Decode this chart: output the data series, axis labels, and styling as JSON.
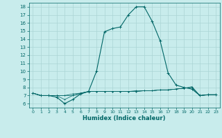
{
  "xlabel": "Humidex (Indice chaleur)",
  "bg_color": "#c8ecec",
  "grid_color": "#aad4d4",
  "line_color": "#006666",
  "xlim": [
    -0.5,
    23.5
  ],
  "ylim": [
    5.5,
    18.5
  ],
  "yticks": [
    6,
    7,
    8,
    9,
    10,
    11,
    12,
    13,
    14,
    15,
    16,
    17,
    18
  ],
  "xticks": [
    0,
    1,
    2,
    3,
    4,
    5,
    6,
    7,
    8,
    9,
    10,
    11,
    12,
    13,
    14,
    15,
    16,
    17,
    18,
    19,
    20,
    21,
    22,
    23
  ],
  "series": [
    [
      7.3,
      7.0,
      7.0,
      6.8,
      6.0,
      6.5,
      7.2,
      7.5,
      10.0,
      14.9,
      15.3,
      15.5,
      17.0,
      18.0,
      18.0,
      16.2,
      13.8,
      9.8,
      8.3,
      8.0,
      7.8,
      7.0,
      7.1,
      7.1
    ],
    [
      7.3,
      7.0,
      7.0,
      7.0,
      7.0,
      7.0,
      7.3,
      7.5,
      7.5,
      7.5,
      7.5,
      7.5,
      7.5,
      7.5,
      7.6,
      7.6,
      7.7,
      7.7,
      7.8,
      7.9,
      8.0,
      7.0,
      7.1,
      7.1
    ],
    [
      7.3,
      7.0,
      7.0,
      7.0,
      6.5,
      7.0,
      7.2,
      7.5,
      7.5,
      7.5,
      7.5,
      7.5,
      7.5,
      7.5,
      7.6,
      7.6,
      7.7,
      7.7,
      7.8,
      7.9,
      8.0,
      7.0,
      7.1,
      7.1
    ],
    [
      7.3,
      7.0,
      7.0,
      7.0,
      7.0,
      7.2,
      7.3,
      7.5,
      7.5,
      7.5,
      7.5,
      7.5,
      7.5,
      7.6,
      7.6,
      7.6,
      7.7,
      7.7,
      7.8,
      7.9,
      8.1,
      7.0,
      7.1,
      7.1
    ]
  ]
}
